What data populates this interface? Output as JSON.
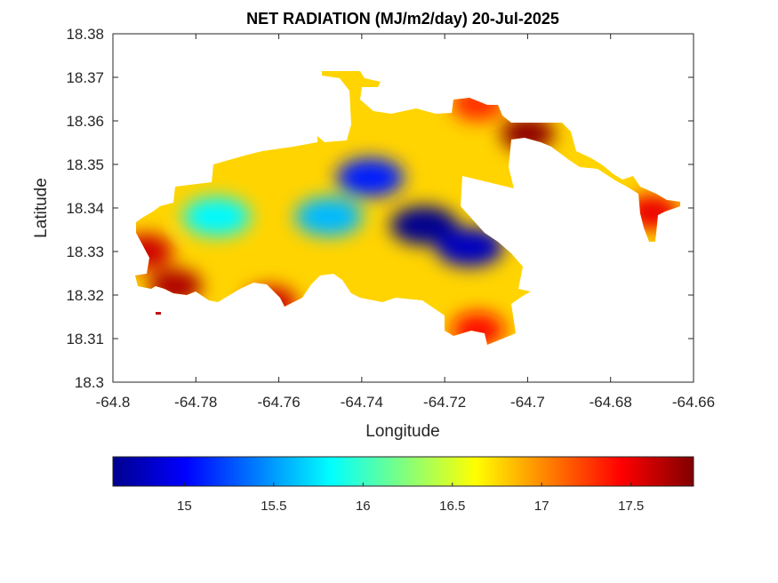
{
  "chart_data": {
    "type": "heatmap",
    "title": "NET RADIATION (MJ/m2/day) 20-Jul-2025",
    "xlabel": "Longitude",
    "ylabel": "Latitude",
    "xlim": [
      -64.8,
      -64.66
    ],
    "ylim": [
      18.3,
      18.38
    ],
    "x_ticks": [
      -64.8,
      -64.78,
      -64.76,
      -64.74,
      -64.72,
      -64.7,
      -64.68,
      -64.66
    ],
    "y_ticks": [
      18.3,
      18.31,
      18.32,
      18.33,
      18.34,
      18.35,
      18.36,
      18.37,
      18.38
    ],
    "x_tick_labels": [
      "-64.8",
      "-64.78",
      "-64.76",
      "-64.74",
      "-64.72",
      "-64.7",
      "-64.68",
      "-64.66"
    ],
    "y_tick_labels": [
      "18.3",
      "18.31",
      "18.32",
      "18.33",
      "18.34",
      "18.35",
      "18.36",
      "18.37",
      "18.38"
    ],
    "colormap": "jet",
    "colorbar": {
      "orientation": "horizontal",
      "location": "bottom",
      "range": [
        14.6,
        17.85
      ],
      "ticks": [
        15,
        15.5,
        16,
        16.5,
        17,
        17.5
      ],
      "tick_labels": [
        "15",
        "15.5",
        "16",
        "16.5",
        "17",
        "17.5"
      ]
    },
    "grid": false,
    "value_range": [
      14.6,
      17.85
    ],
    "hotspots": [
      {
        "lon": -64.725,
        "lat": 18.336,
        "value": 14.65
      },
      {
        "lon": -64.714,
        "lat": 18.331,
        "value": 14.8
      },
      {
        "lon": -64.738,
        "lat": 18.347,
        "value": 15.1
      },
      {
        "lon": -64.748,
        "lat": 18.338,
        "value": 15.6
      },
      {
        "lon": -64.775,
        "lat": 18.338,
        "value": 15.8
      },
      {
        "lon": -64.792,
        "lat": 18.33,
        "value": 17.6
      },
      {
        "lon": -64.785,
        "lat": 18.322,
        "value": 17.7
      },
      {
        "lon": -64.762,
        "lat": 18.318,
        "value": 17.6
      },
      {
        "lon": -64.712,
        "lat": 18.364,
        "value": 17.3
      },
      {
        "lon": -64.7,
        "lat": 18.357,
        "value": 17.8
      },
      {
        "lon": -64.67,
        "lat": 18.339,
        "value": 17.5
      },
      {
        "lon": -64.712,
        "lat": 18.312,
        "value": 17.4
      }
    ]
  }
}
